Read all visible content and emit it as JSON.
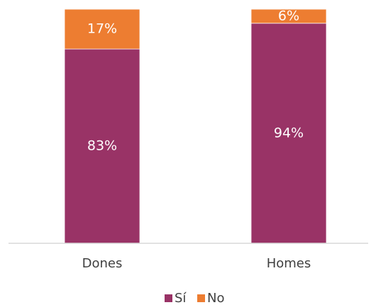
{
  "chart_data": {
    "type": "bar",
    "stacked": true,
    "percent": true,
    "categories": [
      "Dones",
      "Homes"
    ],
    "series": [
      {
        "name": "Sí",
        "values": [
          83,
          94
        ],
        "labels": [
          "83%",
          "94%"
        ],
        "color": "#993366"
      },
      {
        "name": "No",
        "values": [
          17,
          6
        ],
        "labels": [
          "17%",
          "6%"
        ],
        "color": "#ED7D31"
      }
    ],
    "ylim": [
      0,
      100
    ],
    "grid": false,
    "legend": "bottom",
    "axis_color": "#D9D9D9",
    "text_color": "#404040"
  }
}
